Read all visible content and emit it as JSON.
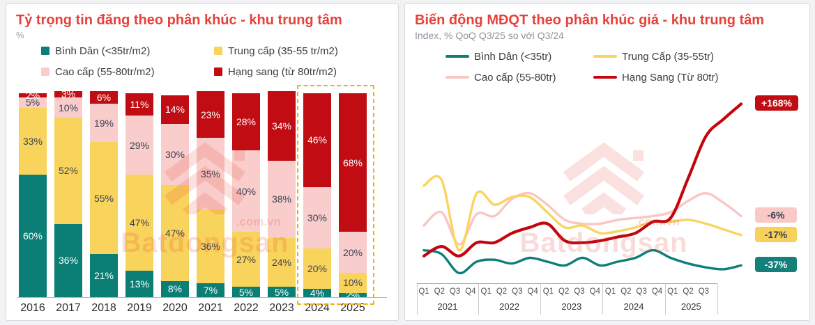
{
  "theme": {
    "title_color": "#E6413B",
    "highlight_dashed_color": "#F2AF0D",
    "card_background": "#FFFFFF",
    "page_background": "#F1F2F4"
  },
  "left_panel": {
    "title": "Tỷ trọng tin đăng theo phân khúc - khu trung tâm",
    "unit_label": "%",
    "legend": [
      {
        "label": "Bình Dân (<35tr/m2)",
        "color": "#0B7E75"
      },
      {
        "label": "Trung cấp (35-55 tr/m2)",
        "color": "#F9D45C"
      },
      {
        "label": "Cao cấp (55-80tr/m2)",
        "color": "#F9CDCB"
      },
      {
        "label": "Hạng sang (từ 80tr/m2)",
        "color": "#C00C12"
      }
    ],
    "watermark": {
      "text": "Batdongsan",
      "suffix": ".com.vn"
    }
  },
  "right_panel": {
    "title": "Biến động MĐQT theo phân khúc giá - khu trung tâm",
    "subtitle": "Index, % QoQ Q3/25 so với Q3/24",
    "legend": [
      {
        "label": "Bình Dân (<35tr)",
        "color": "#0E7F78"
      },
      {
        "label": "Trung Cấp (35-55tr)",
        "color": "#FAD45F"
      },
      {
        "label": "Cao cấp (55-80tr)",
        "color": "#FAC6C3"
      },
      {
        "label": "Hạng Sang (Từ 80tr)",
        "color": "#C3050E"
      }
    ],
    "watermark": {
      "text": "Batdongsan",
      "suffix": ".com.vn"
    }
  },
  "chart_data": [
    {
      "type": "bar",
      "stacked": true,
      "title": "Tỷ trọng tin đăng theo phân khúc - khu trung tâm",
      "ylabel": "%",
      "categories": [
        "2016",
        "2017",
        "2018",
        "2019",
        "2020",
        "2021",
        "2022",
        "2023",
        "2024",
        "2025"
      ],
      "series": [
        {
          "name": "Bình Dân (<35tr/m2)",
          "color": "#0B7E75",
          "label_color": "#FFFFFF",
          "values": [
            60,
            36,
            21,
            13,
            8,
            7,
            5,
            5,
            4,
            2
          ]
        },
        {
          "name": "Trung cấp (35-55 tr/m2)",
          "color": "#F9D45C",
          "label_color": "#3A4054",
          "values": [
            33,
            52,
            55,
            47,
            47,
            36,
            27,
            24,
            20,
            10
          ]
        },
        {
          "name": "Cao cấp (55-80tr/m2)",
          "color": "#F9CDCB",
          "label_color": "#3A4054",
          "values": [
            5,
            10,
            19,
            29,
            30,
            35,
            40,
            38,
            30,
            20
          ]
        },
        {
          "name": "Hạng sang (từ 80tr/m2)",
          "color": "#C00C12",
          "label_color": "#FFFFFF",
          "values": [
            2,
            3,
            6,
            11,
            14,
            23,
            28,
            34,
            46,
            68
          ]
        }
      ],
      "highlighted_categories": [
        "2024",
        "2025"
      ],
      "value_suffix": "%"
    },
    {
      "type": "line",
      "title": "Biến động MĐQT theo phân khúc giá - khu trung tâm",
      "subtitle": "Index, % QoQ Q3/25 so với Q3/24",
      "y_scale_note": "no y-axis shown; values are estimated relative index positions 0-100 of plot height",
      "x_axis": {
        "year_groups": [
          {
            "year": "2021",
            "quarters": [
              "Q1",
              "Q2",
              "Q3",
              "Q4"
            ]
          },
          {
            "year": "2022",
            "quarters": [
              "Q1",
              "Q2",
              "Q3",
              "Q4"
            ]
          },
          {
            "year": "2023",
            "quarters": [
              "Q1",
              "Q2",
              "Q3",
              "Q4"
            ]
          },
          {
            "year": "2024",
            "quarters": [
              "Q1",
              "Q2",
              "Q3",
              "Q4"
            ]
          },
          {
            "year": "2025",
            "quarters": [
              "Q1",
              "Q2",
              "Q3"
            ]
          }
        ]
      },
      "series": [
        {
          "name": "Bình Dân (<35tr)",
          "color": "#0E7F78",
          "values": [
            17,
            15,
            5,
            11,
            12,
            10,
            13,
            11,
            9,
            13,
            9,
            11,
            13,
            17,
            13,
            10,
            8,
            7,
            9
          ],
          "end_label": {
            "text": "-37%",
            "bg": "#14807A",
            "color": "#FFFFFF"
          }
        },
        {
          "name": "Trung Cấp (35-55tr)",
          "color": "#FAD45F",
          "values": [
            51,
            54,
            17,
            47,
            41,
            45,
            45,
            37,
            29,
            30,
            26,
            27,
            29,
            32,
            32,
            33,
            31,
            28,
            25
          ],
          "end_label": {
            "text": "-17%",
            "bg": "#F7D159",
            "color": "#3A4054"
          }
        },
        {
          "name": "Cao cấp (55-80tr)",
          "color": "#FAC6C3",
          "values": [
            30,
            37,
            20,
            36,
            35,
            44,
            47,
            41,
            33,
            31,
            31,
            33,
            34,
            35,
            37,
            43,
            47,
            42,
            35
          ],
          "end_label": {
            "text": "-6%",
            "bg": "#F9C9C6",
            "color": "#3A4054"
          }
        },
        {
          "name": "Hạng Sang (Từ 80tr)",
          "color": "#C3050E",
          "values": [
            14,
            19,
            14,
            21,
            21,
            26,
            29,
            31,
            22,
            21,
            22,
            24,
            26,
            32,
            34,
            55,
            77,
            86,
            94
          ],
          "end_label": {
            "text": "+168%",
            "bg": "#C00C12",
            "color": "#FFFFFF"
          }
        }
      ]
    }
  ]
}
